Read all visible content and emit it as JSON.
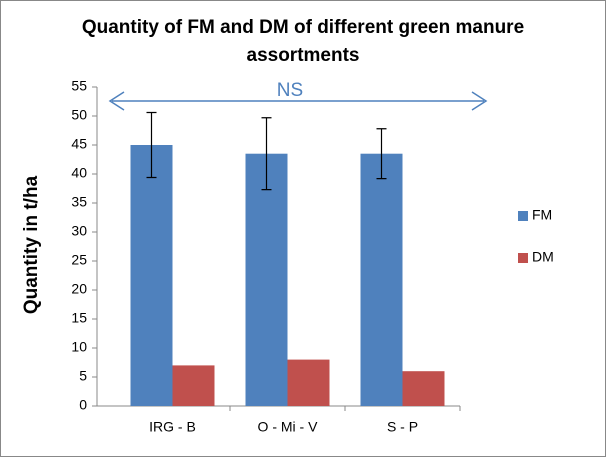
{
  "chart_data": {
    "type": "bar",
    "title": "Quantity of FM and DM of different green manure assortments",
    "ylabel": "Quantity in t/ha",
    "categories": [
      "IRG - B",
      "O - Mi - V",
      "S - P"
    ],
    "series": [
      {
        "name": "FM",
        "color": "#4f81bd",
        "values": [
          45,
          43.5,
          43.5
        ],
        "errors": [
          5.6,
          6.2,
          4.3
        ]
      },
      {
        "name": "DM",
        "color": "#c0504d",
        "values": [
          7,
          8,
          6
        ]
      }
    ],
    "annotation": "NS",
    "ylim": [
      0,
      55
    ],
    "yticks": [
      0,
      5,
      10,
      15,
      20,
      25,
      30,
      35,
      40,
      45,
      50,
      55
    ],
    "legend": "right"
  }
}
